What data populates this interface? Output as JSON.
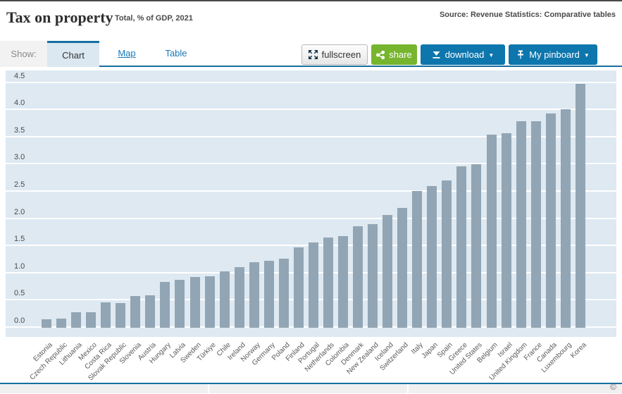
{
  "header": {
    "title": "Tax on property",
    "subtitle": "Total, % of GDP, 2021",
    "source": "Source: Revenue Statistics: Comparative tables"
  },
  "toolbar": {
    "show_label": "Show:",
    "tabs": {
      "chart": "Chart",
      "map": "Map",
      "table": "Table"
    },
    "buttons": {
      "fullscreen": "fullscreen",
      "share": "share",
      "download": "download",
      "pinboard": "My pinboard",
      "caret": "▼"
    }
  },
  "chart_data": {
    "type": "bar",
    "title": "Tax on property",
    "subtitle": "Total, % of GDP, 2021",
    "xlabel": "",
    "ylabel": "% of GDP",
    "ylim": [
      0,
      4.5
    ],
    "ytick_step": 0.5,
    "yticks": [
      "0.0",
      "0.5",
      "1.0",
      "1.5",
      "2.0",
      "2.5",
      "3.0",
      "3.5",
      "4.0",
      "4.5"
    ],
    "grid": true,
    "legend": "none",
    "bar_color": "#92a5b4",
    "plot_bg": "#dee9f2",
    "accent_blue": "#156f9f",
    "categories": [
      "Estonia",
      "Czech Republic",
      "Lithuania",
      "Mexico",
      "Costa Rica",
      "Slovak Republic",
      "Slovenia",
      "Austria",
      "Hungary",
      "Latvia",
      "Sweden",
      "Türkiye",
      "Chile",
      "Ireland",
      "Norway",
      "Germany",
      "Poland",
      "Finland",
      "Portugal",
      "Netherlands",
      "Colombia",
      "Denmark",
      "New Zealand",
      "Iceland",
      "Switzerland",
      "Italy",
      "Japan",
      "Spain",
      "Greece",
      "United States",
      "Belgium",
      "Israel",
      "United Kingdom",
      "France",
      "Canada",
      "Luxembourg",
      "Korea"
    ],
    "values": [
      0.16,
      0.17,
      0.28,
      0.28,
      0.46,
      0.45,
      0.58,
      0.59,
      0.84,
      0.88,
      0.93,
      0.94,
      1.04,
      1.11,
      1.21,
      1.23,
      1.27,
      1.48,
      1.57,
      1.66,
      1.68,
      1.86,
      1.9,
      2.07,
      2.2,
      2.51,
      2.61,
      2.71,
      2.97,
      3.0,
      3.55,
      3.58,
      3.8,
      3.8,
      3.94,
      4.02,
      4.48
    ]
  },
  "footer": {
    "copyright": "©"
  }
}
